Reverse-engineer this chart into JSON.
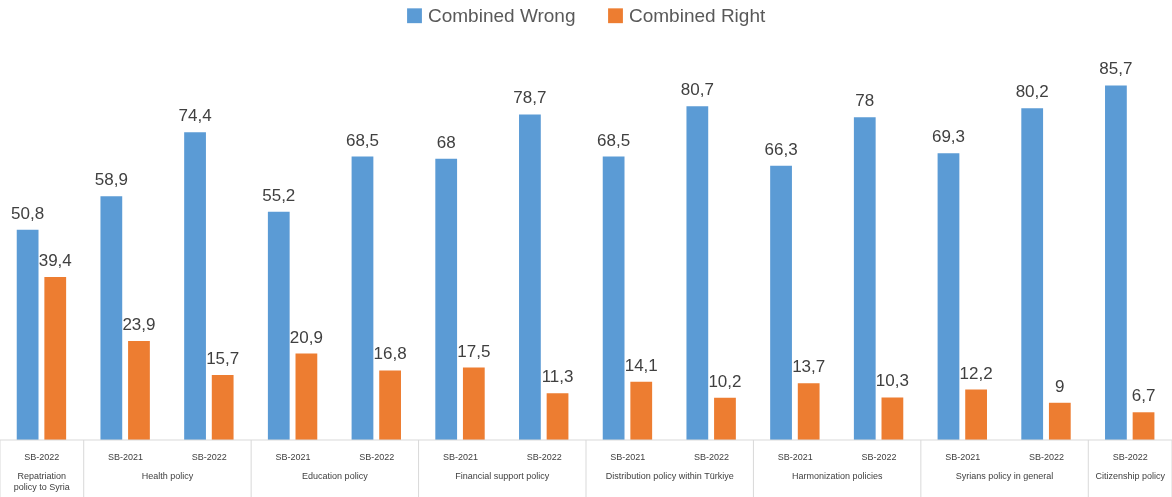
{
  "chart_data": {
    "type": "bar",
    "categories": [
      "SB-2022",
      "SB-2021",
      "SB-2022",
      "SB-2021",
      "SB-2022",
      "SB-2021",
      "SB-2022",
      "SB-2021",
      "SB-2022",
      "SB-2021",
      "SB-2022",
      "SB-2021",
      "SB-2022",
      "SB-2022"
    ],
    "series": [
      {
        "name": "Combined Wrong",
        "color": "#5b9bd5",
        "values": [
          50.8,
          58.9,
          74.4,
          55.2,
          68.5,
          68,
          78.7,
          68.5,
          80.7,
          66.3,
          78,
          69.3,
          80.2,
          85.7
        ],
        "value_labels": [
          "50,8",
          "58,9",
          "74,4",
          "55,2",
          "68,5",
          "68",
          "78,7",
          "68,5",
          "80,7",
          "66,3",
          "78",
          "69,3",
          "80,2",
          "85,7"
        ]
      },
      {
        "name": "Combined Right",
        "color": "#ed7d31",
        "values": [
          39.4,
          23.9,
          15.7,
          20.9,
          16.8,
          17.5,
          11.3,
          14.1,
          10.2,
          13.7,
          10.3,
          12.2,
          9,
          6.7
        ],
        "value_labels": [
          "39,4",
          "23,9",
          "15,7",
          "20,9",
          "16,8",
          "17,5",
          "11,3",
          "14,1",
          "10,2",
          "13,7",
          "10,3",
          "12,2",
          "9",
          "6,7"
        ]
      }
    ],
    "annotations": [
      "Repatriation policy to Syria",
      "Health policy",
      "Education policy",
      "Financial support policy",
      "Distribution policy within Türkiye",
      "Harmonization policies",
      "Syrians policy in general",
      "Citizenship policy"
    ],
    "legend": "top"
  }
}
